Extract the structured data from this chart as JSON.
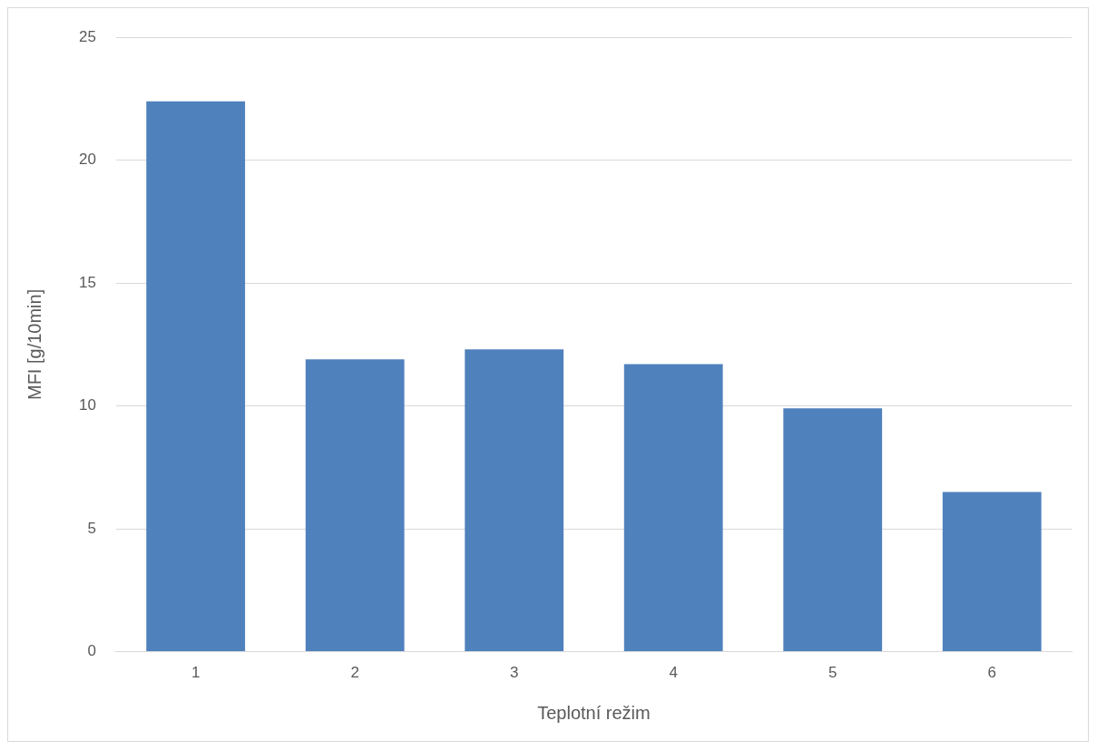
{
  "chart_data": {
    "type": "bar",
    "xlabel": "Teplotní režim",
    "ylabel": "MFI [g/10min]",
    "categories": [
      "1",
      "2",
      "3",
      "4",
      "5",
      "6"
    ],
    "values": [
      22.4,
      11.9,
      12.3,
      11.7,
      9.9,
      6.5
    ],
    "color": "#4f81bd",
    "ylim": [
      0,
      25
    ],
    "yticks": [
      0,
      5,
      10,
      15,
      20,
      25
    ],
    "grid": "y",
    "legend": false
  }
}
